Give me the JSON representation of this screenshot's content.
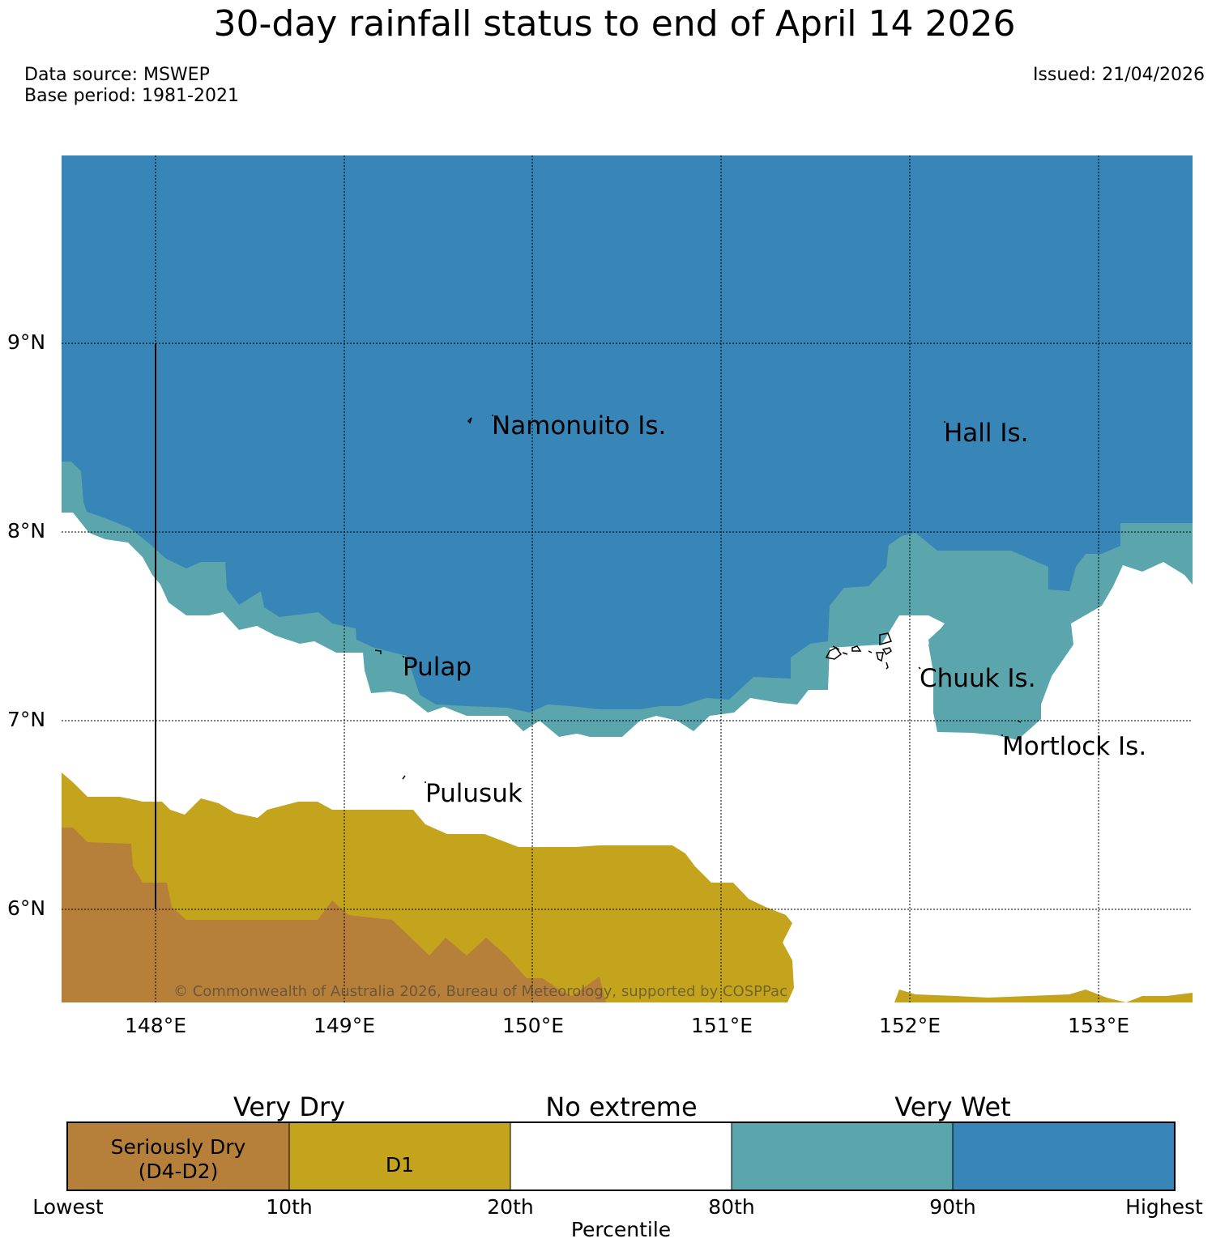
{
  "title": "30-day rainfall status to end of April 14 2026",
  "data_source": "Data source: MSWEP",
  "base_period": "Base period: 1981-2021",
  "issued": "Issued: 21/04/2026",
  "copyright": "© Commonwealth of Australia 2026, Bureau of Meteorology, supported by COSPPac",
  "map": {
    "lat_labels": [
      "9°N",
      "8°N",
      "7°N",
      "6°N"
    ],
    "lon_labels": [
      "148°E",
      "149°E",
      "150°E",
      "151°E",
      "152°E",
      "153°E"
    ],
    "places": [
      "Namonuito Is.",
      "Hall Is.",
      "Pulap",
      "Chuuk Is.",
      "Mortlock Is.",
      "Pulusuk"
    ]
  },
  "colorbar": {
    "headings": [
      "Very Dry",
      "No extreme",
      "Very Wet"
    ],
    "segments": [
      {
        "label_line1": "Seriously Dry",
        "label_line2": "(D4-D2)",
        "color": "#b7803a"
      },
      {
        "label_line1": "D1",
        "label_line2": "",
        "color": "#c4a41d"
      },
      {
        "label_line1": "",
        "label_line2": "",
        "color": "#ffffff"
      },
      {
        "label_line1": "",
        "label_line2": "",
        "color": "#5ba6ac"
      },
      {
        "label_line1": "",
        "label_line2": "",
        "color": "#3886b7"
      }
    ],
    "ticks": [
      "Lowest",
      "10th",
      "20th",
      "80th",
      "90th",
      "Highest"
    ],
    "axis_label": "Percentile"
  },
  "colors": {
    "very_wet": "#3886b7",
    "wet": "#5ba6ac",
    "d1": "#c4a41d",
    "seriously_dry": "#b7803a"
  }
}
